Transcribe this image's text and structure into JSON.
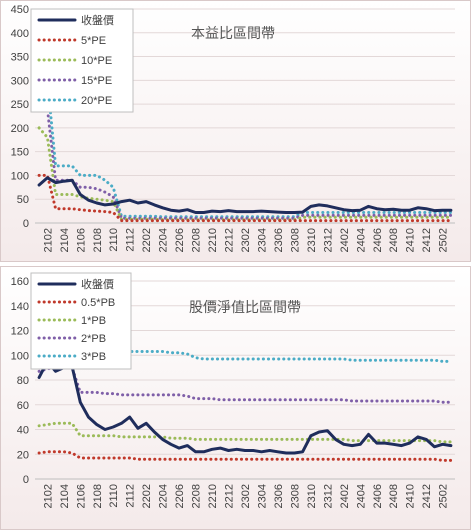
{
  "chart_data": [
    {
      "type": "line",
      "title": "本益比區間帶",
      "xlabel": "",
      "ylabel": "",
      "ylim": [
        0,
        450
      ],
      "yticks": [
        0,
        50,
        100,
        150,
        200,
        250,
        300,
        350,
        400,
        450
      ],
      "x": [
        "2101",
        "2102",
        "2103",
        "2104",
        "2105",
        "2106",
        "2107",
        "2108",
        "2109",
        "2110",
        "2111",
        "2112",
        "2201",
        "2202",
        "2203",
        "2204",
        "2205",
        "2206",
        "2207",
        "2208",
        "2209",
        "2210",
        "2211",
        "2212",
        "2301",
        "2302",
        "2303",
        "2304",
        "2305",
        "2306",
        "2307",
        "2308",
        "2309",
        "2310",
        "2311",
        "2312",
        "2401",
        "2402",
        "2403",
        "2404",
        "2405",
        "2406",
        "2407",
        "2408",
        "2409",
        "2410",
        "2411",
        "2412",
        "2501",
        "2502",
        "2503"
      ],
      "xtick_labels": [
        "2102",
        "2104",
        "2106",
        "2108",
        "2110",
        "2112",
        "2202",
        "2204",
        "2206",
        "2208",
        "2210",
        "2212",
        "2302",
        "2304",
        "2306",
        "2308",
        "2310",
        "2312",
        "2402",
        "2404",
        "2406",
        "2408",
        "2410",
        "2412",
        "2502"
      ],
      "legend_position": "top-left",
      "series": [
        {
          "name": "收盤價",
          "color": "#1f2d5c",
          "style": "solid",
          "values": [
            80,
            95,
            85,
            88,
            90,
            60,
            48,
            42,
            38,
            40,
            45,
            48,
            42,
            45,
            38,
            32,
            27,
            25,
            28,
            22,
            22,
            25,
            24,
            26,
            24,
            24,
            24,
            25,
            24,
            23,
            22,
            22,
            23,
            35,
            38,
            36,
            32,
            28,
            26,
            27,
            35,
            30,
            28,
            29,
            27,
            27,
            32,
            30,
            26,
            27,
            27
          ]
        },
        {
          "name": "5*PE",
          "color": "#c0392b",
          "style": "dotted",
          "values": [
            100,
            100,
            30,
            30,
            30,
            28,
            26,
            25,
            24,
            22,
            5,
            5,
            5,
            5,
            5,
            5,
            5,
            5,
            5,
            5,
            5,
            5,
            5,
            5,
            5,
            5,
            5,
            5,
            5,
            5,
            5,
            5,
            5,
            5,
            5,
            5,
            5,
            5,
            5,
            5,
            5,
            5,
            5,
            5,
            5,
            5,
            5,
            5,
            5,
            5,
            5
          ]
        },
        {
          "name": "10*PE",
          "color": "#9bbb59",
          "style": "dotted",
          "values": [
            200,
            180,
            60,
            60,
            60,
            55,
            52,
            50,
            48,
            45,
            8,
            8,
            8,
            8,
            8,
            7,
            7,
            7,
            7,
            7,
            7,
            7,
            7,
            7,
            7,
            7,
            7,
            7,
            7,
            7,
            7,
            7,
            12,
            12,
            12,
            12,
            12,
            12,
            12,
            12,
            12,
            12,
            12,
            12,
            12,
            12,
            12,
            12,
            12,
            12,
            12
          ]
        },
        {
          "name": "15*PE",
          "color": "#7f5fa8",
          "style": "dotted",
          "values": [
            240,
            240,
            90,
            90,
            90,
            75,
            75,
            72,
            65,
            55,
            10,
            10,
            10,
            10,
            10,
            10,
            10,
            10,
            10,
            10,
            10,
            10,
            10,
            10,
            10,
            10,
            10,
            10,
            10,
            10,
            10,
            10,
            16,
            16,
            16,
            16,
            16,
            16,
            16,
            16,
            16,
            16,
            16,
            16,
            16,
            16,
            16,
            16,
            16,
            16,
            16
          ]
        },
        {
          "name": "20*PE",
          "color": "#4bacc6",
          "style": "dotted",
          "values": [
            300,
            300,
            120,
            120,
            120,
            100,
            100,
            100,
            90,
            75,
            14,
            14,
            14,
            14,
            14,
            13,
            13,
            13,
            13,
            13,
            13,
            13,
            13,
            13,
            13,
            13,
            13,
            13,
            13,
            13,
            13,
            13,
            22,
            22,
            22,
            22,
            22,
            22,
            22,
            22,
            22,
            22,
            22,
            22,
            22,
            22,
            22,
            22,
            22,
            22,
            22
          ]
        }
      ]
    },
    {
      "type": "line",
      "title": "股價淨值比區間帶",
      "xlabel": "",
      "ylabel": "",
      "ylim": [
        0,
        160
      ],
      "yticks": [
        0,
        20,
        40,
        60,
        80,
        100,
        120,
        140,
        160
      ],
      "x": [
        "2101",
        "2102",
        "2103",
        "2104",
        "2105",
        "2106",
        "2107",
        "2108",
        "2109",
        "2110",
        "2111",
        "2112",
        "2201",
        "2202",
        "2203",
        "2204",
        "2205",
        "2206",
        "2207",
        "2208",
        "2209",
        "2210",
        "2211",
        "2212",
        "2301",
        "2302",
        "2303",
        "2304",
        "2305",
        "2306",
        "2307",
        "2308",
        "2309",
        "2310",
        "2311",
        "2312",
        "2401",
        "2402",
        "2403",
        "2404",
        "2405",
        "2406",
        "2407",
        "2408",
        "2409",
        "2410",
        "2411",
        "2412",
        "2501",
        "2502",
        "2503"
      ],
      "xtick_labels": [
        "2102",
        "2104",
        "2106",
        "2108",
        "2110",
        "2112",
        "2202",
        "2204",
        "2206",
        "2208",
        "2210",
        "2212",
        "2302",
        "2304",
        "2306",
        "2308",
        "2310",
        "2312",
        "2402",
        "2404",
        "2406",
        "2408",
        "2410",
        "2412",
        "2502"
      ],
      "legend_position": "top-left",
      "series": [
        {
          "name": "收盤價",
          "color": "#1f2d5c",
          "style": "solid",
          "values": [
            82,
            95,
            87,
            90,
            91,
            62,
            50,
            44,
            40,
            42,
            45,
            50,
            41,
            45,
            38,
            32,
            28,
            25,
            27,
            22,
            22,
            24,
            25,
            23,
            24,
            23,
            23,
            22,
            23,
            22,
            21,
            21,
            22,
            35,
            38,
            39,
            32,
            28,
            27,
            28,
            36,
            29,
            29,
            28,
            27,
            29,
            34,
            32,
            26,
            28,
            27
          ]
        },
        {
          "name": "0.5*PB",
          "color": "#c0392b",
          "style": "dotted",
          "values": [
            21,
            22,
            22,
            22,
            21,
            17,
            17,
            17,
            17,
            17,
            17,
            17,
            16,
            16,
            16,
            16,
            16,
            16,
            16,
            16,
            16,
            16,
            16,
            16,
            16,
            16,
            16,
            16,
            16,
            16,
            16,
            16,
            16,
            16,
            16,
            16,
            16,
            16,
            16,
            16,
            16,
            16,
            16,
            16,
            16,
            16,
            16,
            16,
            16,
            15,
            15
          ]
        },
        {
          "name": "1*PB",
          "color": "#9bbb59",
          "style": "dotted",
          "values": [
            43,
            44,
            45,
            45,
            45,
            35,
            35,
            35,
            35,
            35,
            34,
            34,
            34,
            34,
            34,
            34,
            33,
            33,
            33,
            32,
            32,
            32,
            32,
            32,
            32,
            32,
            32,
            32,
            32,
            32,
            32,
            32,
            32,
            32,
            32,
            32,
            32,
            32,
            31,
            31,
            31,
            31,
            31,
            31,
            31,
            31,
            31,
            31,
            31,
            30,
            30
          ]
        },
        {
          "name": "2*PB",
          "color": "#7f5fa8",
          "style": "dotted",
          "values": [
            87,
            89,
            90,
            90,
            90,
            70,
            70,
            70,
            69,
            69,
            68,
            68,
            68,
            68,
            68,
            68,
            68,
            68,
            67,
            65,
            65,
            65,
            64,
            64,
            64,
            64,
            64,
            64,
            64,
            64,
            64,
            64,
            64,
            64,
            64,
            64,
            64,
            64,
            63,
            63,
            63,
            63,
            63,
            63,
            63,
            63,
            63,
            63,
            63,
            62,
            62
          ]
        },
        {
          "name": "3*PB",
          "color": "#4bacc6",
          "style": "dotted",
          "values": [
            130,
            133,
            134,
            134,
            134,
            105,
            105,
            105,
            104,
            104,
            103,
            103,
            103,
            103,
            103,
            103,
            102,
            102,
            101,
            98,
            97,
            97,
            97,
            97,
            97,
            97,
            97,
            97,
            97,
            97,
            97,
            97,
            97,
            97,
            97,
            97,
            97,
            97,
            96,
            96,
            96,
            96,
            96,
            96,
            96,
            96,
            96,
            96,
            96,
            95,
            95
          ]
        }
      ]
    }
  ]
}
